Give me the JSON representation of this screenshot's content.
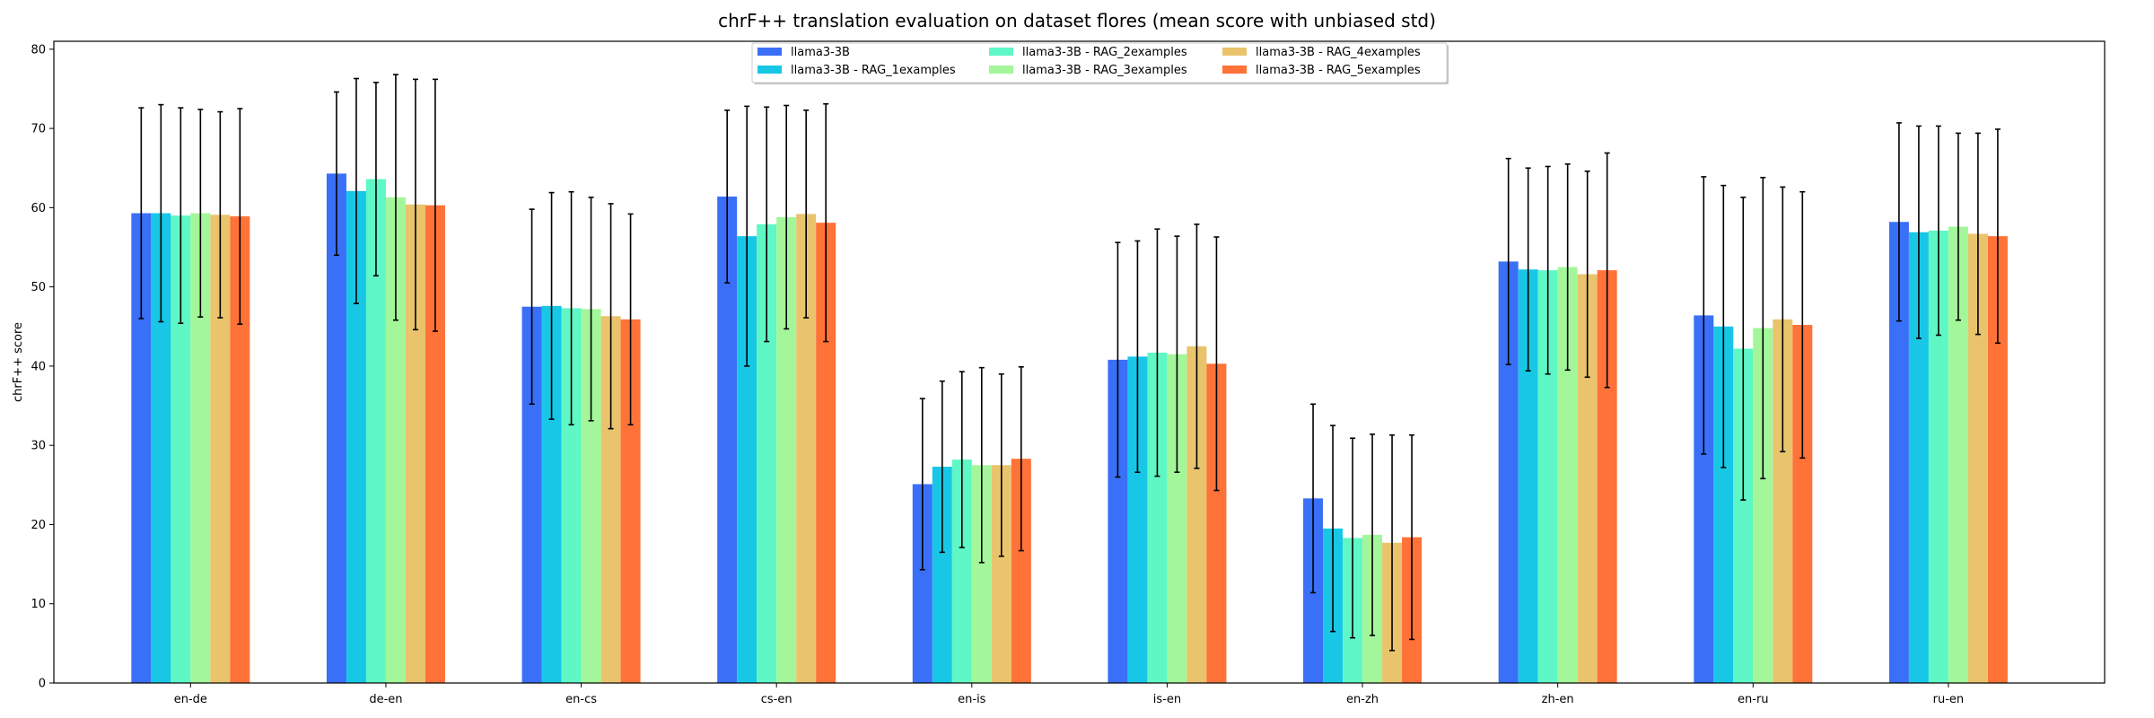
{
  "chart_data": {
    "type": "bar",
    "title": "chrF++ translation evaluation on dataset flores (mean score with unbiased std)",
    "xlabel": "",
    "ylabel": "chrF++ score",
    "ylim": [
      0,
      81
    ],
    "yticks": [
      0,
      10,
      20,
      30,
      40,
      50,
      60,
      70,
      80
    ],
    "grid": false,
    "legend_position": "top-center",
    "legend_columns": 3,
    "categories": [
      "en-de",
      "de-en",
      "en-cs",
      "cs-en",
      "en-is",
      "is-en",
      "en-zh",
      "zh-en",
      "en-ru",
      "ru-en"
    ],
    "series": [
      {
        "name": "llama3-3B",
        "color": "#3a6ff7",
        "values": [
          59.3,
          64.3,
          47.5,
          61.4,
          25.1,
          40.8,
          23.3,
          53.2,
          46.4,
          58.2
        ],
        "errors": [
          13.3,
          10.3,
          12.3,
          10.9,
          10.8,
          14.8,
          11.9,
          13.0,
          17.5,
          12.5
        ]
      },
      {
        "name": "llama3-3B - RAG_1examples",
        "color": "#18c7e6",
        "values": [
          59.3,
          62.1,
          47.6,
          56.4,
          27.3,
          41.2,
          19.5,
          52.2,
          45.0,
          56.9
        ],
        "errors": [
          13.7,
          14.2,
          14.3,
          16.4,
          10.8,
          14.6,
          13.0,
          12.8,
          17.8,
          13.4
        ]
      },
      {
        "name": "llama3-3B - RAG_2examples",
        "color": "#5ef7c5",
        "values": [
          59.0,
          63.6,
          47.3,
          57.9,
          28.2,
          41.7,
          18.3,
          52.1,
          42.2,
          57.1
        ],
        "errors": [
          13.6,
          12.2,
          14.7,
          14.8,
          11.1,
          15.6,
          12.6,
          13.1,
          19.1,
          13.2
        ]
      },
      {
        "name": "llama3-3B - RAG_3examples",
        "color": "#a3f79a",
        "values": [
          59.3,
          61.3,
          47.2,
          58.8,
          27.5,
          41.5,
          18.7,
          52.5,
          44.8,
          57.6
        ],
        "errors": [
          13.1,
          15.5,
          14.1,
          14.1,
          12.3,
          14.9,
          12.7,
          13.0,
          19.0,
          11.8
        ]
      },
      {
        "name": "llama3-3B - RAG_4examples",
        "color": "#e9c46d",
        "values": [
          59.1,
          60.4,
          46.3,
          59.2,
          27.5,
          42.5,
          17.7,
          51.6,
          45.9,
          56.7
        ],
        "errors": [
          13.0,
          15.8,
          14.2,
          13.1,
          11.5,
          15.4,
          13.6,
          13.0,
          16.7,
          12.7
        ]
      },
      {
        "name": "llama3-3B - RAG_5examples",
        "color": "#ff7238",
        "values": [
          58.9,
          60.3,
          45.9,
          58.1,
          28.3,
          40.3,
          18.4,
          52.1,
          45.2,
          56.4
        ],
        "errors": [
          13.6,
          15.9,
          13.3,
          15.0,
          11.6,
          16.0,
          12.9,
          14.8,
          16.8,
          13.5
        ]
      }
    ]
  }
}
